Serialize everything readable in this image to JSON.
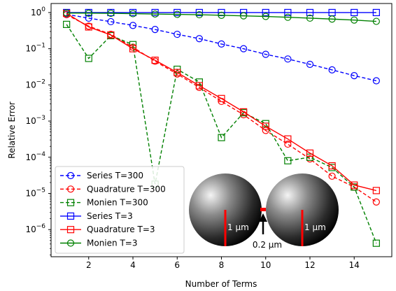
{
  "chart_data": {
    "type": "line",
    "xlabel": "Number of Terms",
    "ylabel": "Relative Error",
    "xlim": [
      0.3,
      15.7
    ],
    "ylim_log10": [
      -6.75,
      0.25
    ],
    "y_scale": "log",
    "grid": false,
    "legend_position": "lower-left",
    "x_ticks": [
      2,
      4,
      6,
      8,
      10,
      12,
      14
    ],
    "x_tick_labels": [
      "2",
      "4",
      "6",
      "8",
      "10",
      "12",
      "14"
    ],
    "y_ticks_log10": [
      0,
      -1,
      -2,
      -3,
      -4,
      -5,
      -6
    ],
    "y_tick_labels": [
      {
        "base": "10",
        "exp": "0"
      },
      {
        "base": "10",
        "exp": "−1"
      },
      {
        "base": "10",
        "exp": "−2"
      },
      {
        "base": "10",
        "exp": "−3"
      },
      {
        "base": "10",
        "exp": "−4"
      },
      {
        "base": "10",
        "exp": "−5"
      },
      {
        "base": "10",
        "exp": "−6"
      }
    ],
    "x": [
      1,
      2,
      3,
      4,
      5,
      6,
      7,
      8,
      9,
      10,
      11,
      12,
      13,
      14,
      15
    ],
    "series": [
      {
        "name": "Series T=300",
        "color": "#0000ff",
        "dash": "dashed",
        "marker": "circle",
        "values": [
          0.89,
          0.7,
          0.56,
          0.44,
          0.34,
          0.25,
          0.19,
          0.135,
          0.1,
          0.07,
          0.052,
          0.037,
          0.026,
          0.018,
          0.013
        ]
      },
      {
        "name": "Quadrature T=300",
        "color": "#ff0000",
        "dash": "dashed",
        "marker": "circle",
        "values": [
          0.87,
          0.42,
          0.25,
          0.11,
          0.045,
          0.02,
          0.0085,
          0.0035,
          0.0015,
          0.00055,
          0.00023,
          9e-05,
          3e-05,
          1.5e-05,
          5.8e-06
        ]
      },
      {
        "name": "Monien T=300",
        "color": "#008000",
        "dash": "dashed",
        "marker": "square",
        "values": [
          0.47,
          0.054,
          0.23,
          0.13,
          1.8e-05,
          0.027,
          0.012,
          0.00035,
          0.0017,
          0.00085,
          8e-05,
          0.0001,
          5.2e-05,
          1.5e-05,
          4.2e-07
        ]
      },
      {
        "name": "Series T=3",
        "color": "#0000ff",
        "dash": "solid",
        "marker": "square",
        "values": [
          1.0,
          1.0,
          1.0,
          1.0,
          1.0,
          1.0,
          1.0,
          1.0,
          1.0,
          1.0,
          1.0,
          1.0,
          1.0,
          1.0,
          1.0
        ]
      },
      {
        "name": "Quadrature T=3",
        "color": "#ff0000",
        "dash": "solid",
        "marker": "square",
        "values": [
          0.95,
          0.4,
          0.24,
          0.1,
          0.048,
          0.022,
          0.0095,
          0.0042,
          0.0018,
          0.00072,
          0.00032,
          0.00013,
          5.8e-05,
          1.7e-05,
          1.2e-05
        ]
      },
      {
        "name": "Monien T=3",
        "color": "#008000",
        "dash": "solid",
        "marker": "circle",
        "values": [
          0.97,
          0.96,
          0.95,
          0.93,
          0.91,
          0.89,
          0.87,
          0.84,
          0.81,
          0.78,
          0.74,
          0.7,
          0.66,
          0.62,
          0.57
        ]
      }
    ],
    "inset": {
      "sphere_label_left": "1 μm",
      "sphere_label_right": "1 μm",
      "gap_label": "0.2 μm"
    }
  }
}
